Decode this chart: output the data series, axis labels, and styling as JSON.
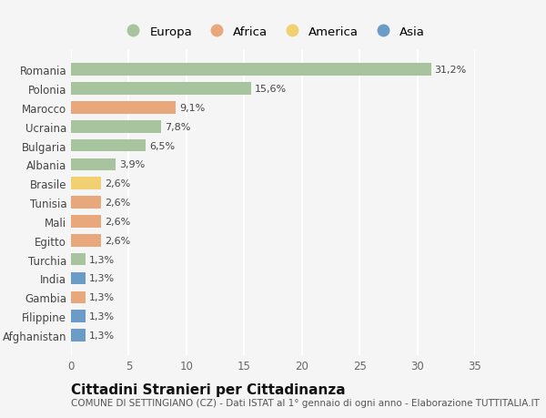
{
  "countries": [
    "Romania",
    "Polonia",
    "Marocco",
    "Ucraina",
    "Bulgaria",
    "Albania",
    "Brasile",
    "Tunisia",
    "Mali",
    "Egitto",
    "Turchia",
    "India",
    "Gambia",
    "Filippine",
    "Afghanistan"
  ],
  "values": [
    31.2,
    15.6,
    9.1,
    7.8,
    6.5,
    3.9,
    2.6,
    2.6,
    2.6,
    2.6,
    1.3,
    1.3,
    1.3,
    1.3,
    1.3
  ],
  "labels": [
    "31,2%",
    "15,6%",
    "9,1%",
    "7,8%",
    "6,5%",
    "3,9%",
    "2,6%",
    "2,6%",
    "2,6%",
    "2,6%",
    "1,3%",
    "1,3%",
    "1,3%",
    "1,3%",
    "1,3%"
  ],
  "continents": [
    "Europa",
    "Europa",
    "Africa",
    "Europa",
    "Europa",
    "Europa",
    "America",
    "Africa",
    "Africa",
    "Africa",
    "Europa",
    "Asia",
    "Africa",
    "Asia",
    "Asia"
  ],
  "continent_colors": {
    "Europa": "#a8c49f",
    "Africa": "#e8a87c",
    "America": "#f0d070",
    "Asia": "#6b9cc8"
  },
  "legend_order": [
    "Europa",
    "Africa",
    "America",
    "Asia"
  ],
  "xlim": [
    0,
    35
  ],
  "xticks": [
    0,
    5,
    10,
    15,
    20,
    25,
    30,
    35
  ],
  "title": "Cittadini Stranieri per Cittadinanza",
  "subtitle": "COMUNE DI SETTINGIANO (CZ) - Dati ISTAT al 1° gennaio di ogni anno - Elaborazione TUTTITALIA.IT",
  "background_color": "#f5f5f5",
  "bar_height": 0.65,
  "grid_color": "#ffffff",
  "title_fontsize": 11,
  "subtitle_fontsize": 7.5,
  "label_fontsize": 8,
  "tick_fontsize": 8.5
}
